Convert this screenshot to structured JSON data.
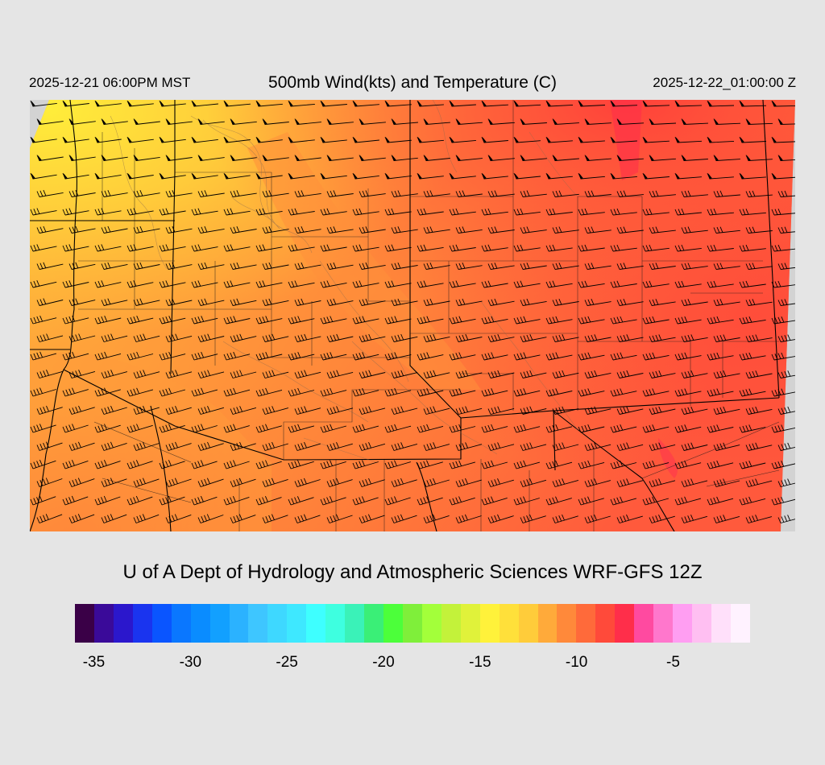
{
  "header": {
    "valid_local": "2025-12-21 06:00PM MST",
    "title": "500mb Wind(kts) and Temperature (C)",
    "valid_utc": "2025-12-22_01:00:00 Z"
  },
  "footer": {
    "credit": "U of A Dept of Hydrology and Atmospheric Sciences WRF-GFS 12Z"
  },
  "colorbar": {
    "colors": [
      "#3a0047",
      "#3a0a99",
      "#2b17cc",
      "#1a34ef",
      "#0a55ff",
      "#0a77ff",
      "#0a8cff",
      "#12a0ff",
      "#2bb2ff",
      "#3ec6ff",
      "#3ed8ff",
      "#3ee8ff",
      "#3effff",
      "#3effe0",
      "#3af2b8",
      "#3aef77",
      "#4cff3a",
      "#7fef3a",
      "#a3ff3a",
      "#c3f23a",
      "#e0f23a",
      "#fff23a",
      "#ffe03a",
      "#ffcc3a",
      "#ffaa3a",
      "#ff893a",
      "#ff6a3a",
      "#ff4a3a",
      "#ff2e4a",
      "#ff4aa0",
      "#ff77cc",
      "#ff9ef2",
      "#ffbff2",
      "#ffe0fa",
      "#fff2ff"
    ],
    "ticks": [
      {
        "label": "-35",
        "pos": 0.028
      },
      {
        "label": "-30",
        "pos": 0.171
      },
      {
        "label": "-25",
        "pos": 0.314
      },
      {
        "label": "-20",
        "pos": 0.457
      },
      {
        "label": "-15",
        "pos": 0.6
      },
      {
        "label": "-10",
        "pos": 0.743
      },
      {
        "label": "-5",
        "pos": 0.886
      }
    ]
  }
}
